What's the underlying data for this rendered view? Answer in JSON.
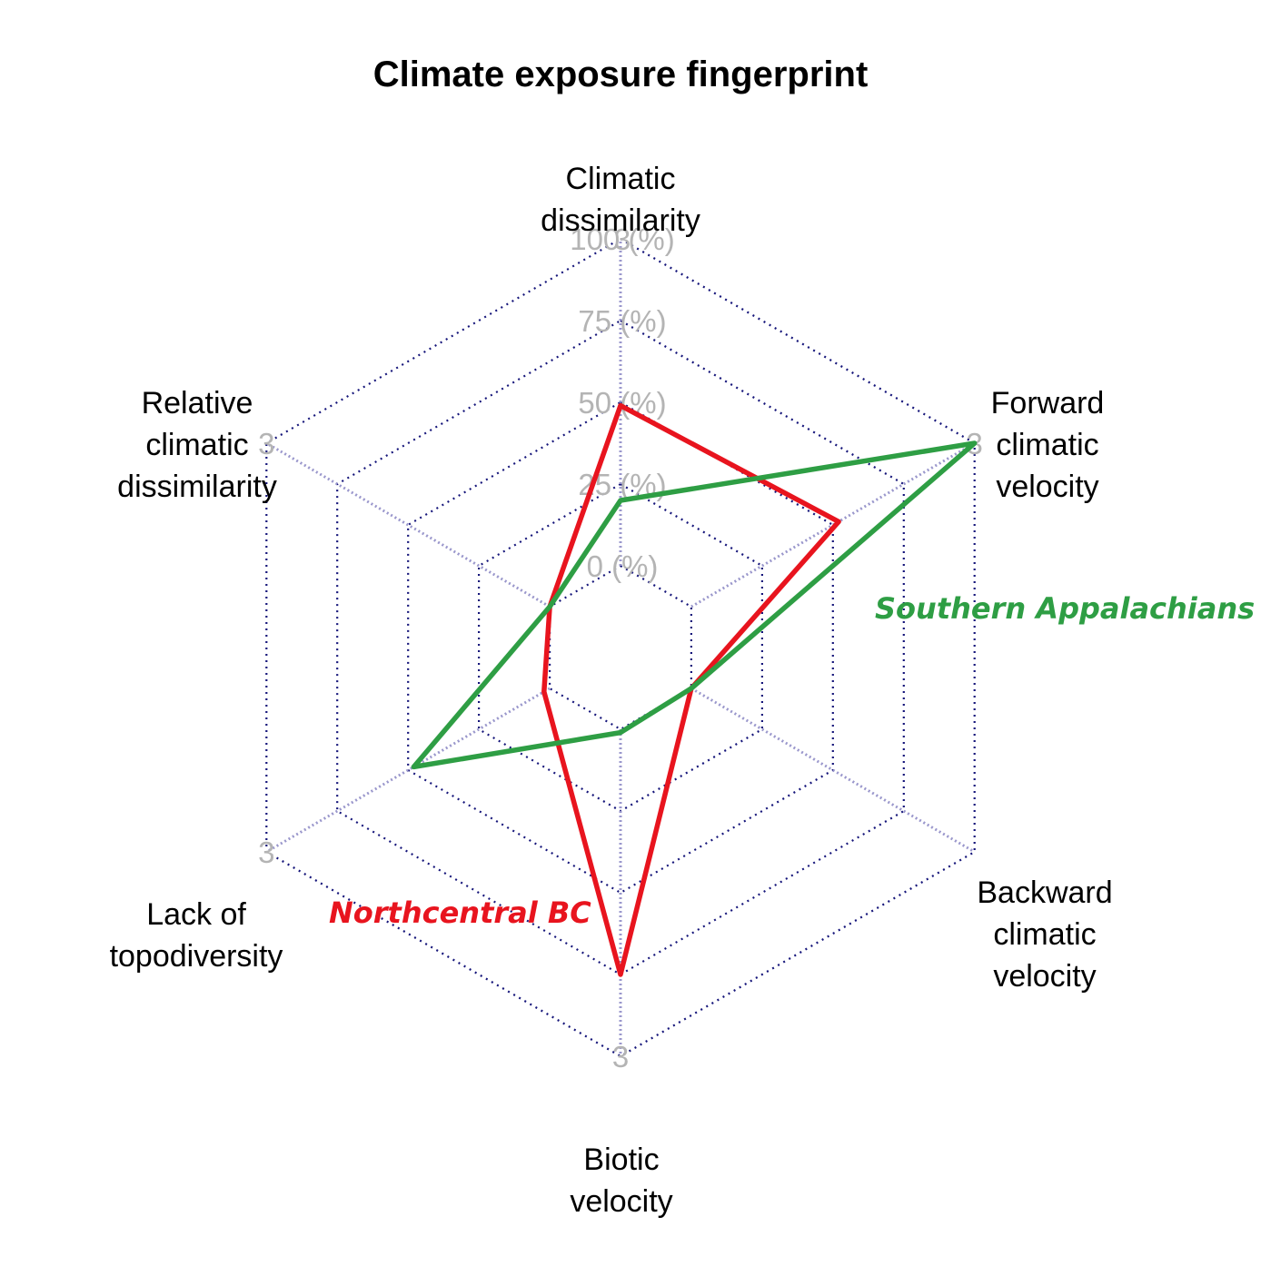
{
  "chart_data": {
    "type": "radar",
    "title": "Climate exposure fingerprint",
    "axes": [
      {
        "label_lines": [
          "Climatic",
          "dissimilarity"
        ],
        "max_label": ""
      },
      {
        "label_lines": [
          "Forward",
          "climatic",
          "velocity"
        ],
        "max_label": "3"
      },
      {
        "label_lines": [
          "Backward",
          "climatic",
          "velocity"
        ],
        "max_label": ""
      },
      {
        "label_lines": [
          "Biotic",
          "velocity"
        ],
        "max_label": "3"
      },
      {
        "label_lines": [
          "Lack of",
          "topodiversity"
        ],
        "max_label": "3"
      },
      {
        "label_lines": [
          "Relative",
          "climatic",
          "dissimilarity"
        ],
        "max_label": "3"
      }
    ],
    "range": [
      0,
      100
    ],
    "ring_values": [
      0,
      25,
      50,
      75,
      100
    ],
    "ring_labels": [
      "0 (%)",
      "25 (%)",
      "50 (%)",
      "75 (%)",
      "100 (%)"
    ],
    "ring_top_overlap_label": "3",
    "grid": true,
    "series": [
      {
        "name": "Northcentral BC",
        "color": "#e8141e",
        "values": [
          49,
          52,
          0,
          75,
          2,
          0
        ]
      },
      {
        "name": "Southern Appalachians",
        "color": "#2e9e44",
        "values": [
          20,
          100,
          0,
          1,
          48,
          0
        ]
      }
    ],
    "grid_color": "#15157a",
    "spoke_color": "#9a97cc"
  }
}
